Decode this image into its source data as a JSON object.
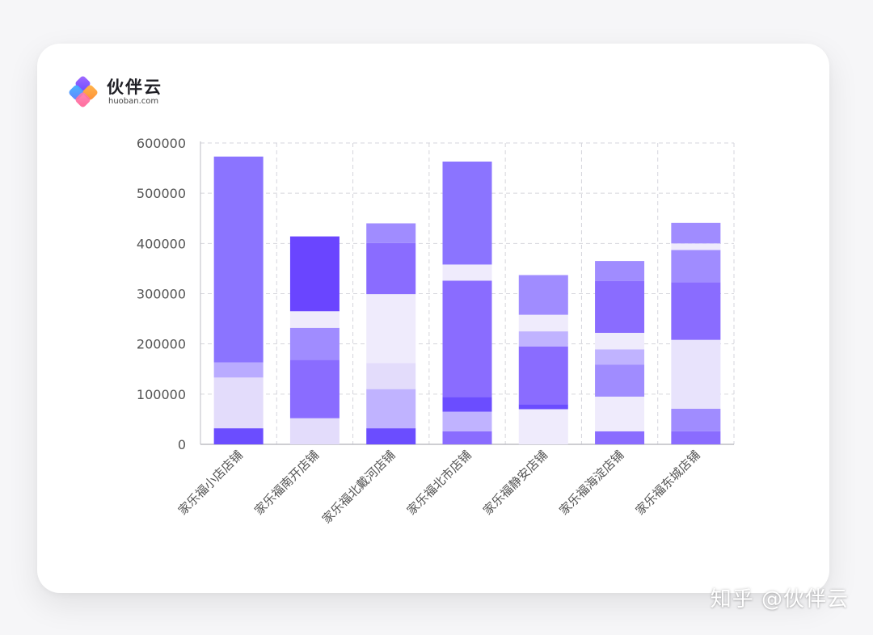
{
  "brand": {
    "name": "伙伴云",
    "domain": "huoban.com"
  },
  "watermark": "知乎 @伙伴云",
  "palette": [
    "#6b4dff",
    "#e3dcfb",
    "#efebfc",
    "#b9abff",
    "#9e8bff",
    "#8a6cff",
    "#8b74ff"
  ],
  "chart_data": {
    "type": "bar",
    "stacked": true,
    "categories": [
      "家乐福小店店铺",
      "家乐福南开店铺",
      "家乐福北戴河店铺",
      "家乐福北市店铺",
      "家乐福静安店铺",
      "家乐福海淀店铺",
      "家乐福东城店铺"
    ],
    "ylim": [
      0,
      600000
    ],
    "yticks": [
      0,
      100000,
      200000,
      300000,
      400000,
      500000,
      600000
    ],
    "grid": true,
    "segments": [
      [
        {
          "value": 32000,
          "color": "#6b4dff"
        },
        {
          "value": 101000,
          "color": "#e3dcfb"
        },
        {
          "value": 30000,
          "color": "#b9abff"
        },
        {
          "value": 410000,
          "color": "#8b74ff"
        }
      ],
      [
        {
          "value": 52000,
          "color": "#e3dcfb"
        },
        {
          "value": 116000,
          "color": "#8a6cff"
        },
        {
          "value": 64000,
          "color": "#a08cff"
        },
        {
          "value": 33000,
          "color": "#efebfc"
        },
        {
          "value": 149000,
          "color": "#6a45ff"
        }
      ],
      [
        {
          "value": 32000,
          "color": "#6b4dff"
        },
        {
          "value": 78000,
          "color": "#c0b3ff"
        },
        {
          "value": 52000,
          "color": "#e3dcfb"
        },
        {
          "value": 137000,
          "color": "#efebfc"
        },
        {
          "value": 102000,
          "color": "#8a6cff"
        },
        {
          "value": 39000,
          "color": "#a08cff"
        }
      ],
      [
        {
          "value": 26000,
          "color": "#8a6cff"
        },
        {
          "value": 39000,
          "color": "#c0b3ff"
        },
        {
          "value": 29000,
          "color": "#6b4dff"
        },
        {
          "value": 232000,
          "color": "#8a6cff"
        },
        {
          "value": 32000,
          "color": "#efebfc"
        },
        {
          "value": 205000,
          "color": "#8b74ff"
        }
      ],
      [
        {
          "value": 70000,
          "color": "#efebfc"
        },
        {
          "value": 10000,
          "color": "#6b4dff"
        },
        {
          "value": 115000,
          "color": "#8a6cff"
        },
        {
          "value": 30000,
          "color": "#c0b3ff"
        },
        {
          "value": 33000,
          "color": "#efebfc"
        },
        {
          "value": 79000,
          "color": "#a08cff"
        }
      ],
      [
        {
          "value": 26000,
          "color": "#8a6cff"
        },
        {
          "value": 69000,
          "color": "#efebfc"
        },
        {
          "value": 64000,
          "color": "#a08cff"
        },
        {
          "value": 30000,
          "color": "#c0b3ff"
        },
        {
          "value": 33000,
          "color": "#efebfc"
        },
        {
          "value": 103000,
          "color": "#8a6cff"
        },
        {
          "value": 40000,
          "color": "#a08cff"
        }
      ],
      [
        {
          "value": 26000,
          "color": "#8a6cff"
        },
        {
          "value": 45000,
          "color": "#a08cff"
        },
        {
          "value": 137000,
          "color": "#e8e3fc"
        },
        {
          "value": 115000,
          "color": "#8a6cff"
        },
        {
          "value": 64000,
          "color": "#a08cff"
        },
        {
          "value": 13000,
          "color": "#efebfc"
        },
        {
          "value": 41000,
          "color": "#a08cff"
        }
      ]
    ]
  }
}
